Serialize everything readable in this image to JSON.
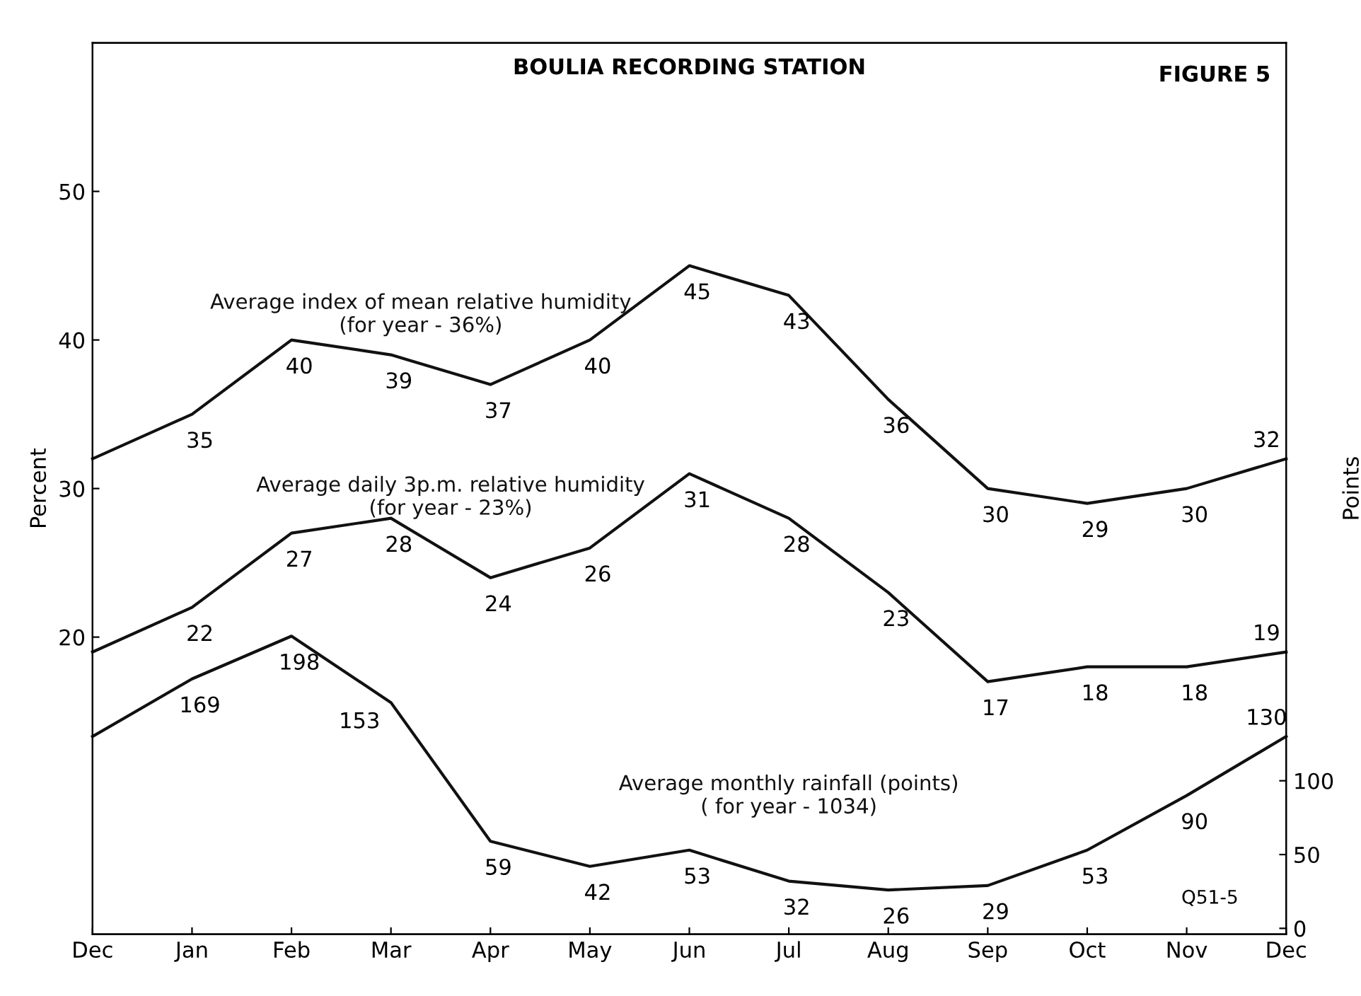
{
  "chart_data": {
    "type": "line",
    "title": "BOULIA RECORDING STATION",
    "ylabel": "Percent",
    "y2label": "Points",
    "categories": [
      "Dec",
      "Jan",
      "Feb",
      "Mar",
      "Apr",
      "May",
      "Jun",
      "Jul",
      "Aug",
      "Sep",
      "Oct",
      "Nov",
      "Dec"
    ],
    "series": [
      {
        "name": "Average index of mean relative humidity\n(for year - 36%)",
        "color": "#111111",
        "values": [
          32,
          35,
          40,
          39,
          37,
          40,
          45,
          43,
          36,
          30,
          29,
          30,
          32
        ],
        "value_labels": [
          null,
          "35",
          "40",
          "39",
          "37",
          "40",
          "45",
          "43",
          "36",
          "30",
          "29",
          "30",
          "32"
        ]
      },
      {
        "name": "Average daily 3p.m. relative humidity\n(for year - 23%)",
        "color": "#111111",
        "values": [
          19,
          22,
          27,
          28,
          24,
          26,
          31,
          28,
          23,
          17,
          18,
          18,
          19
        ],
        "value_labels": [
          null,
          "22",
          "27",
          "28",
          "24",
          "26",
          "31",
          "28",
          "23",
          "17",
          "18",
          "18",
          "19"
        ]
      },
      {
        "name": "Average monthly rainfall (points)\n( for year - 1034)",
        "color": "#111111",
        "axis": "y2",
        "values": [
          130,
          169,
          198,
          153,
          59,
          42,
          53,
          32,
          26,
          29,
          53,
          90,
          130
        ],
        "value_labels": [
          null,
          "169",
          "198",
          "153",
          "59",
          "42",
          "53",
          "32",
          "26",
          "29",
          "53",
          "90",
          "130"
        ]
      }
    ],
    "ylim": [
      0,
      60
    ],
    "yticks": [
      20,
      30,
      40,
      50
    ],
    "y2lim": [
      -4,
      600
    ],
    "y2ticks": [
      0,
      50,
      100
    ],
    "annotations": [
      "FIGURE 5",
      "Q51-5"
    ],
    "grid": false,
    "legend": false,
    "marker": "none",
    "line_style": "solid"
  }
}
